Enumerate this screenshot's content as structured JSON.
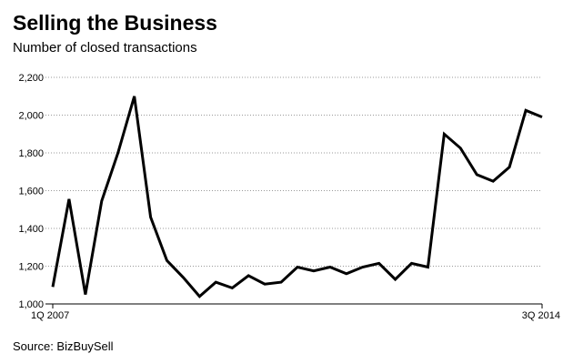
{
  "chart_data": {
    "type": "line",
    "title": "Selling the Business",
    "subtitle": "Number of closed transactions",
    "source": "Source: BizBuySell",
    "x_start_label": "1Q 2007",
    "x_end_label": "3Q 2014",
    "ylim": [
      1000,
      2200
    ],
    "yticks": [
      1000,
      1200,
      1400,
      1600,
      1800,
      2000,
      2200
    ],
    "ytick_labels": [
      "1,000",
      "1,200",
      "1,400",
      "1,600",
      "1,800",
      "2,000",
      "2,200"
    ],
    "grid": true,
    "line_color": "#000000",
    "grid_color": "#999999",
    "series": [
      {
        "values": [
          1090,
          1555,
          1050,
          1545,
          1800,
          2100,
          1460,
          1230,
          1140,
          1040,
          1115,
          1085,
          1150,
          1105,
          1115,
          1195,
          1175,
          1195,
          1160,
          1195,
          1215,
          1130,
          1215,
          1195,
          1900,
          1825,
          1685,
          1650,
          1725,
          2025,
          1990
        ]
      }
    ]
  }
}
